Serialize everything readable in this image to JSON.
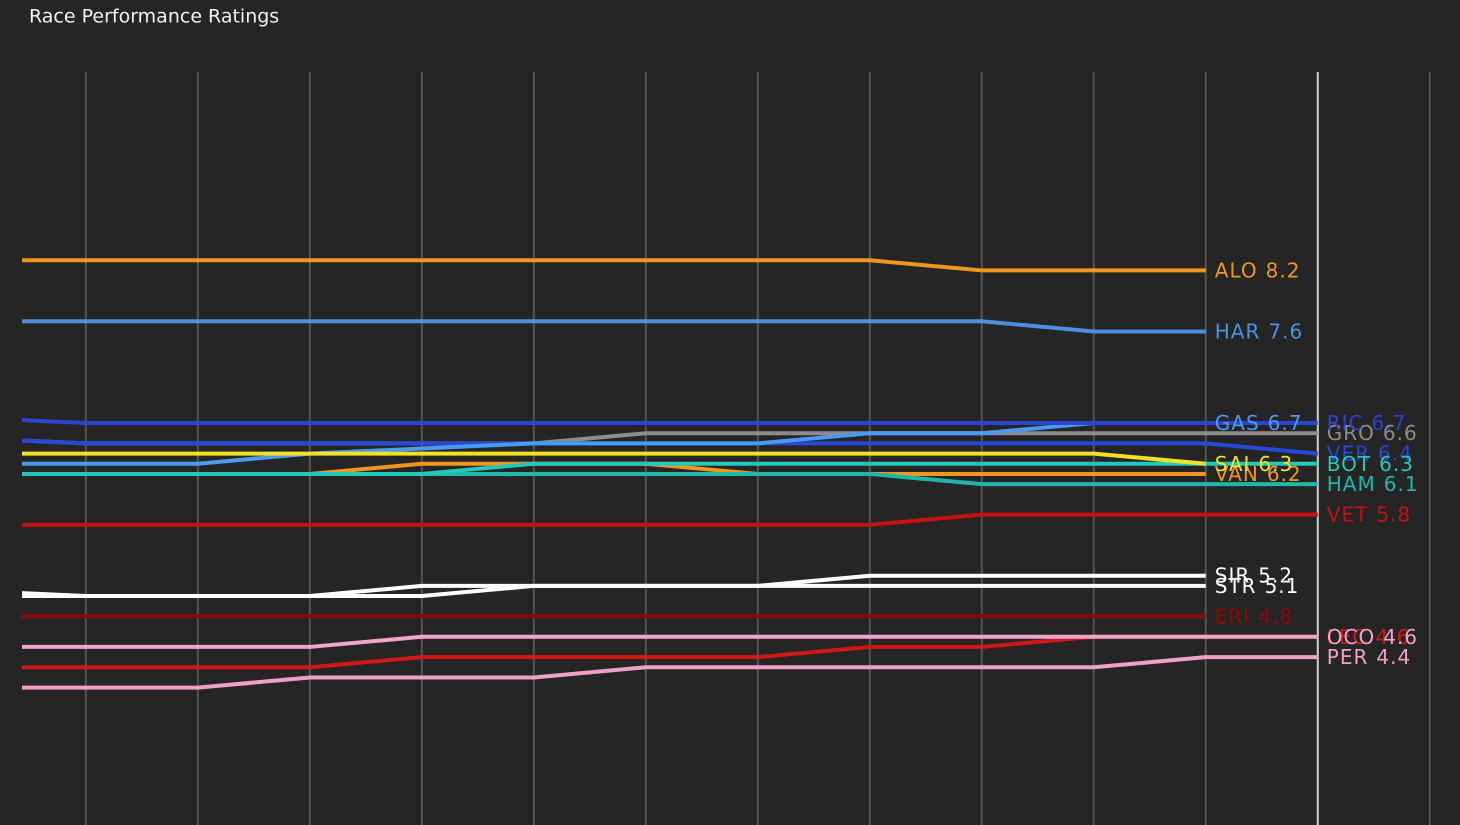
{
  "chart_data": {
    "type": "line",
    "title": "Race Performance Ratings",
    "xlim": [
      0.43,
      13.27
    ],
    "ylim": [
      2.75,
      10.15
    ],
    "xticks": [
      1,
      2,
      3,
      4,
      5,
      6,
      7,
      8,
      9,
      10,
      11,
      12,
      13
    ],
    "highlight_x": 12,
    "grid": true,
    "x": [
      0,
      1,
      2,
      3,
      4,
      5,
      6,
      7,
      8,
      9,
      10,
      11,
      12
    ],
    "series": [
      {
        "name": "ALO",
        "color": "#f0961e",
        "values": [
          8.3,
          8.3,
          8.3,
          8.3,
          8.3,
          8.3,
          8.3,
          8.3,
          8.3,
          8.2,
          8.2,
          8.2,
          null
        ]
      },
      {
        "name": "HAR",
        "color": "#4a90e2",
        "values": [
          7.7,
          7.7,
          7.7,
          7.7,
          7.7,
          7.7,
          7.7,
          7.7,
          7.7,
          7.7,
          7.6,
          7.6,
          null
        ]
      },
      {
        "name": "GRO",
        "color": "#8c8c8c",
        "values": [
          6.55,
          6.5,
          6.5,
          6.5,
          6.5,
          6.5,
          6.6,
          6.6,
          6.6,
          6.6,
          6.6,
          6.6,
          6.6
        ]
      },
      {
        "name": "VER",
        "color": "#2848d8",
        "values": [
          6.55,
          6.5,
          6.5,
          6.5,
          6.5,
          6.5,
          6.5,
          6.5,
          6.5,
          6.5,
          6.5,
          6.5,
          6.4
        ]
      },
      {
        "name": "GAS",
        "color": "#4a9af0",
        "values": [
          6.3,
          6.3,
          6.3,
          6.4,
          6.45,
          6.5,
          6.5,
          6.5,
          6.6,
          6.6,
          6.7,
          6.7,
          null
        ]
      },
      {
        "name": "RIC",
        "color": "#2c44d0",
        "values": [
          6.75,
          6.7,
          6.7,
          6.7,
          6.7,
          6.7,
          6.7,
          6.7,
          6.7,
          6.7,
          6.7,
          6.7,
          6.7
        ]
      },
      {
        "name": "VAN",
        "color": "#f0961e",
        "values": [
          6.2,
          6.2,
          6.2,
          6.2,
          6.3,
          6.3,
          6.3,
          6.2,
          6.2,
          6.2,
          6.2,
          6.2,
          null
        ]
      },
      {
        "name": "HAM",
        "color": "#1fb8a8",
        "values": [
          6.2,
          6.2,
          6.2,
          6.2,
          6.2,
          6.2,
          6.2,
          6.2,
          6.2,
          6.1,
          6.1,
          6.1,
          6.1
        ]
      },
      {
        "name": "BOT",
        "color": "#22c8b8",
        "values": [
          6.2,
          6.2,
          6.2,
          6.2,
          6.2,
          6.3,
          6.3,
          6.3,
          6.3,
          6.3,
          6.3,
          6.3,
          6.3
        ]
      },
      {
        "name": "SAI",
        "color": "#f2e224",
        "values": [
          6.4,
          6.4,
          6.4,
          6.4,
          6.4,
          6.4,
          6.4,
          6.4,
          6.4,
          6.4,
          6.4,
          6.3,
          null
        ]
      },
      {
        "name": "VET",
        "color": "#c41212",
        "values": [
          5.7,
          5.7,
          5.7,
          5.7,
          5.7,
          5.7,
          5.7,
          5.7,
          5.7,
          5.8,
          5.8,
          5.8,
          5.8
        ]
      },
      {
        "name": "STR",
        "color": "#ffffff",
        "values": [
          5.0,
          5.0,
          5.0,
          5.0,
          5.0,
          5.1,
          5.1,
          5.1,
          5.1,
          5.1,
          5.1,
          5.1,
          null
        ]
      },
      {
        "name": "SIR",
        "color": "#ffffff",
        "values": [
          5.05,
          5.0,
          5.0,
          5.0,
          5.1,
          5.1,
          5.1,
          5.1,
          5.2,
          5.2,
          5.2,
          5.2,
          null
        ]
      },
      {
        "name": "ERI",
        "color": "#8b0a0a",
        "values": [
          4.8,
          4.8,
          4.8,
          4.8,
          4.8,
          4.8,
          4.8,
          4.8,
          4.8,
          4.8,
          4.8,
          4.8,
          null
        ]
      },
      {
        "name": "LEC",
        "color": "#d01818",
        "values": [
          4.3,
          4.3,
          4.3,
          4.3,
          4.4,
          4.4,
          4.4,
          4.4,
          4.5,
          4.5,
          4.6,
          4.6,
          4.6
        ]
      },
      {
        "name": "OCO",
        "color": "#f2a4cc",
        "values": [
          4.5,
          4.5,
          4.5,
          4.5,
          4.6,
          4.6,
          4.6,
          4.6,
          4.6,
          4.6,
          4.6,
          4.6,
          4.6
        ]
      },
      {
        "name": "PER",
        "color": "#f0a0c8",
        "values": [
          4.1,
          4.1,
          4.1,
          4.2,
          4.2,
          4.2,
          4.3,
          4.3,
          4.3,
          4.3,
          4.3,
          4.4,
          4.4
        ]
      }
    ]
  }
}
